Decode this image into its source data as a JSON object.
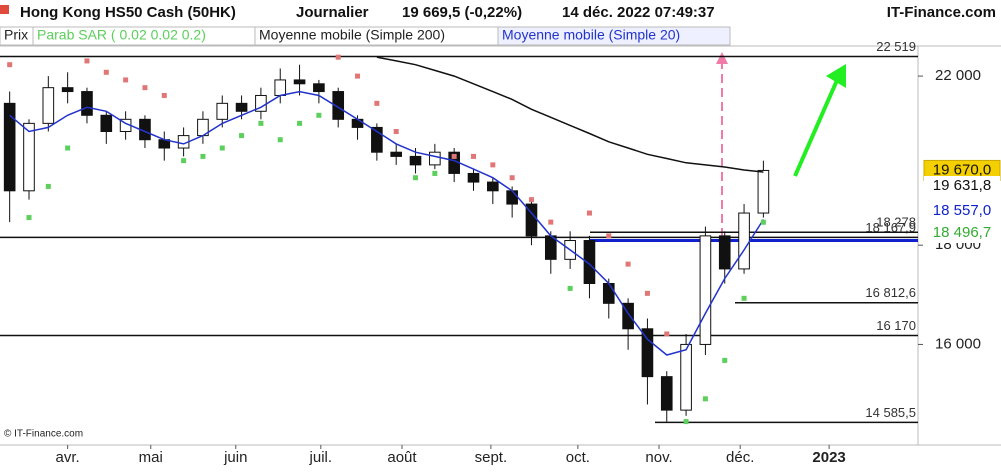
{
  "header": {
    "title": "Hong Kong HS50 Cash (50HK)",
    "period": "Journalier",
    "quote": "19 669,5 (-0,22%)",
    "datetime": "14 déc. 2022 07:49:37",
    "brand": "IT-Finance.com"
  },
  "copyright": "© IT-Finance.com",
  "chart_data": {
    "type": "candlestick",
    "log_scale": true,
    "ylim": [
      14200,
      22800
    ],
    "yticks": [
      {
        "value": 16000,
        "label": "16 000"
      },
      {
        "value": 18000,
        "label": "18 000"
      },
      {
        "value": 22000,
        "label": "22 000"
      }
    ],
    "xlim": [
      -0.5,
      47
    ],
    "xticks": [
      {
        "value": 3.0,
        "label": "avr."
      },
      {
        "value": 7.3,
        "label": "mai"
      },
      {
        "value": 11.7,
        "label": "juin"
      },
      {
        "value": 16.1,
        "label": "juil."
      },
      {
        "value": 20.3,
        "label": "août"
      },
      {
        "value": 24.9,
        "label": "sept."
      },
      {
        "value": 29.4,
        "label": "oct."
      },
      {
        "value": 33.6,
        "label": "nov."
      },
      {
        "value": 37.8,
        "label": "déc."
      },
      {
        "value": 42.4,
        "label": "2023"
      }
    ],
    "price_name": "Prix",
    "colors": {
      "up": "#ffffff",
      "down": "#111111",
      "wick": "#111111"
    },
    "x": [
      0,
      1,
      2,
      3,
      4,
      5,
      6,
      7,
      8,
      9,
      10,
      11,
      12,
      13,
      14,
      15,
      16,
      17,
      18,
      19,
      20,
      21,
      22,
      23,
      24,
      25,
      26,
      27,
      28,
      29,
      30,
      31,
      32,
      33,
      34,
      35,
      36,
      37,
      38,
      39
    ],
    "open": [
      21300,
      19200,
      20800,
      21700,
      21600,
      21000,
      20600,
      20900,
      20400,
      20200,
      20500,
      20900,
      21300,
      21100,
      21500,
      21900,
      21800,
      21600,
      20900,
      20700,
      20100,
      20000,
      19800,
      20100,
      19600,
      19400,
      19200,
      18900,
      18200,
      17700,
      18100,
      17200,
      16800,
      16300,
      15400,
      14800,
      16000,
      18200,
      17500,
      18700
    ],
    "high": [
      21600,
      20900,
      22000,
      22100,
      21700,
      21100,
      21100,
      21000,
      20600,
      20700,
      21100,
      21500,
      21500,
      21700,
      22200,
      22300,
      21900,
      21700,
      21000,
      20800,
      20300,
      20200,
      20300,
      20200,
      19700,
      19500,
      19300,
      19000,
      18300,
      18300,
      18200,
      17300,
      16900,
      16500,
      15500,
      16200,
      18400,
      18300,
      18900,
      19900
    ],
    "low": [
      18500,
      19000,
      20600,
      21300,
      20800,
      20300,
      20400,
      20200,
      19900,
      20000,
      20300,
      20700,
      20900,
      20900,
      21300,
      21500,
      21300,
      20700,
      20400,
      19900,
      19800,
      19600,
      19700,
      19400,
      19200,
      18900,
      18600,
      18000,
      17400,
      17500,
      16900,
      16500,
      15900,
      14900,
      14600,
      14700,
      15800,
      17200,
      17400,
      18600
    ],
    "close": [
      19200,
      20800,
      21700,
      21600,
      21000,
      20600,
      20900,
      20400,
      20200,
      20500,
      20900,
      21300,
      21100,
      21500,
      21900,
      21800,
      21600,
      20900,
      20700,
      20100,
      20000,
      19800,
      20100,
      19600,
      19400,
      19200,
      18900,
      18200,
      17700,
      18100,
      17200,
      16800,
      16300,
      15400,
      14800,
      16000,
      18200,
      17500,
      18700,
      19670
    ],
    "sar": {
      "name": "Parab SAR ( 0.02 0.02 0.2)",
      "color_above": "#e07676",
      "color_below": "#5ccf5c",
      "values": [
        22300,
        18600,
        19300,
        20200,
        22400,
        22100,
        21900,
        21700,
        21500,
        19900,
        20000,
        20200,
        20500,
        20800,
        20400,
        20800,
        21000,
        22500,
        22000,
        21300,
        20600,
        19500,
        19600,
        20000,
        20000,
        19800,
        19500,
        19000,
        18500,
        17100,
        18700,
        18200,
        17600,
        17000,
        16200,
        14600,
        15000,
        15700,
        16900,
        18496.7
      ]
    },
    "ma200": {
      "name": "Moyenne mobile (Simple 200)",
      "color": "#111111",
      "values": [
        null,
        null,
        null,
        null,
        null,
        null,
        null,
        null,
        null,
        null,
        null,
        null,
        null,
        null,
        null,
        null,
        null,
        null,
        null,
        22500,
        22400,
        22300,
        22150,
        22000,
        21800,
        21600,
        21400,
        21150,
        20950,
        20750,
        20550,
        20350,
        20200,
        20050,
        19950,
        19850,
        19800,
        19750,
        19680,
        19631.8
      ]
    },
    "ma20": {
      "name": "Moyenne mobile (Simple 20)",
      "color": "#2233cc",
      "values": [
        21000,
        20600,
        20700,
        21000,
        21200,
        21100,
        20800,
        20600,
        20400,
        20300,
        20500,
        20800,
        21000,
        21200,
        21500,
        21600,
        21500,
        21200,
        20900,
        20600,
        20300,
        20100,
        20000,
        19900,
        19700,
        19500,
        19200,
        18700,
        18200,
        17900,
        17600,
        17200,
        16600,
        16100,
        15800,
        15900,
        16600,
        17300,
        17900,
        18557
      ]
    },
    "levels": [
      {
        "value": 22519,
        "label": "22 519"
      },
      {
        "value": 18278,
        "label": "18 278"
      },
      {
        "value": 18167.9,
        "label": "18 167,9"
      },
      {
        "value": 16812.6,
        "label": "16 812,6"
      },
      {
        "value": 16170,
        "label": "16 170"
      },
      {
        "value": 14585.5,
        "label": "14 585,5"
      }
    ],
    "support_line": {
      "value": 18100,
      "color": "#1122cc"
    },
    "price_labels": [
      {
        "value": 19670,
        "label": "19 670,0",
        "color": "#111111",
        "background": "#f5d000"
      },
      {
        "value": 19631.8,
        "label": "19 631,8",
        "color": "#111111",
        "background": "#ffffff"
      },
      {
        "value": 18557,
        "label": "18 557,0",
        "color": "#1122cc",
        "background": "#ffffff"
      },
      {
        "value": 18496.7,
        "label": "18 496,7",
        "color": "#33aa33",
        "background": "#ffffff"
      }
    ]
  }
}
